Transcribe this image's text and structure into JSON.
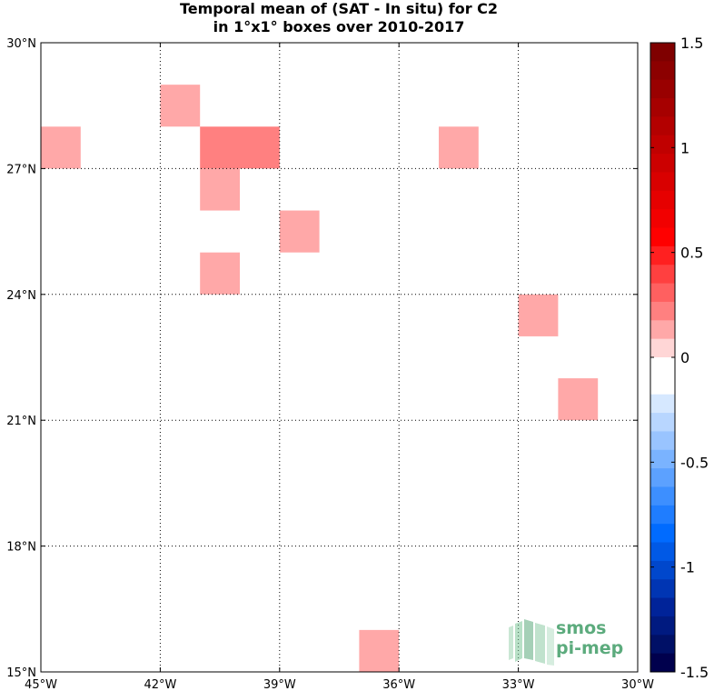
{
  "chart_data": {
    "type": "heatmap",
    "title_line1": "Temporal mean of (SAT - In situ) for C2",
    "title_line2": "in 1°x1° boxes over 2010-2017",
    "xlim": [
      -45,
      -30
    ],
    "ylim": [
      15,
      30
    ],
    "x_ticks": [
      {
        "value": -45,
        "label": "45°W"
      },
      {
        "value": -42,
        "label": "42°W"
      },
      {
        "value": -39,
        "label": "39°W"
      },
      {
        "value": -36,
        "label": "36°W"
      },
      {
        "value": -33,
        "label": "33°W"
      },
      {
        "value": -30,
        "label": "30°W"
      }
    ],
    "y_ticks": [
      {
        "value": 15,
        "label": "15°N"
      },
      {
        "value": 18,
        "label": "18°N"
      },
      {
        "value": 21,
        "label": "21°N"
      },
      {
        "value": 24,
        "label": "24°N"
      },
      {
        "value": 27,
        "label": "27°N"
      },
      {
        "value": 30,
        "label": "30°N"
      }
    ],
    "grid": true,
    "colorbar": {
      "range": [
        -1.5,
        1.5
      ],
      "ticks": [
        {
          "value": 1.5,
          "label": "1.5"
        },
        {
          "value": 1,
          "label": "1"
        },
        {
          "value": 0.5,
          "label": "0.5"
        },
        {
          "value": 0,
          "label": "0"
        },
        {
          "value": -0.5,
          "label": "-0.5"
        },
        {
          "value": -1,
          "label": "-1"
        },
        {
          "value": -1.5,
          "label": "-1.5"
        }
      ],
      "colors_top_to_bottom": [
        "#7f0000",
        "#8c0000",
        "#990000",
        "#a60000",
        "#b30000",
        "#c00000",
        "#cc0000",
        "#d90000",
        "#e60000",
        "#f20000",
        "#ff0000",
        "#ff2020",
        "#ff4040",
        "#ff6060",
        "#ff8080",
        "#ffa8a8",
        "#ffd6d6",
        "#ffffff",
        "#ffffff",
        "#d6e8ff",
        "#b8d6ff",
        "#99c4ff",
        "#7ab3ff",
        "#5ca1ff",
        "#3d8fff",
        "#1f7dff",
        "#006bff",
        "#0059e6",
        "#0047cc",
        "#0035b3",
        "#002399",
        "#001a80",
        "#001066",
        "#00004d"
      ]
    },
    "cells": [
      {
        "lon": -30.5,
        "lat": 29.5,
        "value": -0.1
      },
      {
        "lon": -41.5,
        "lat": 28.5,
        "value": 0.12
      },
      {
        "lon": -44.5,
        "lat": 27.5,
        "value": 0.1
      },
      {
        "lon": -40.5,
        "lat": 27.5,
        "value": 0.25
      },
      {
        "lon": -39.5,
        "lat": 27.5,
        "value": 0.25
      },
      {
        "lon": -34.5,
        "lat": 27.5,
        "value": 0.1
      },
      {
        "lon": -40.5,
        "lat": 26.5,
        "value": 0.12
      },
      {
        "lon": -39.5,
        "lat": 26.5,
        "value": -0.15
      },
      {
        "lon": -38.5,
        "lat": 25.5,
        "value": 0.12
      },
      {
        "lon": -40.5,
        "lat": 24.5,
        "value": 0.12
      },
      {
        "lon": -32.5,
        "lat": 23.5,
        "value": 0.12
      },
      {
        "lon": -37.5,
        "lat": 22.5,
        "value": -0.1
      },
      {
        "lon": -43.5,
        "lat": 21.5,
        "value": -0.1
      },
      {
        "lon": -31.5,
        "lat": 21.5,
        "value": 0.12
      },
      {
        "lon": -42.5,
        "lat": 19.5,
        "value": -0.1
      },
      {
        "lon": -34.5,
        "lat": 16.5,
        "value": -0.1
      },
      {
        "lon": -36.5,
        "lat": 15.5,
        "value": 0.12
      }
    ]
  },
  "logo": {
    "line1": "smos",
    "line2": "pi-mep",
    "color": "#5cab7d"
  }
}
